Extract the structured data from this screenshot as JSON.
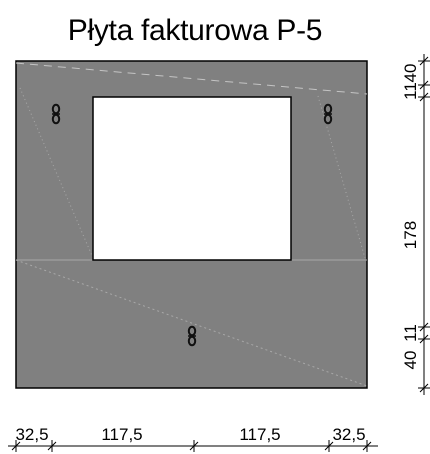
{
  "title": "Płyta fakturowa P-5",
  "colors": {
    "panel": "#808080",
    "opening": "#ffffff",
    "outline": "#000000",
    "guide_lines": "#a9a9a9",
    "anchor": "#111111"
  },
  "anchor_icon": "lifting-anchor-icon",
  "bottom_dimensions": {
    "labels": [
      "32,5",
      "117,5",
      "117,5",
      "32,5"
    ]
  },
  "right_dimensions": {
    "labels": [
      "11",
      "40",
      "178",
      "11",
      "40"
    ]
  }
}
